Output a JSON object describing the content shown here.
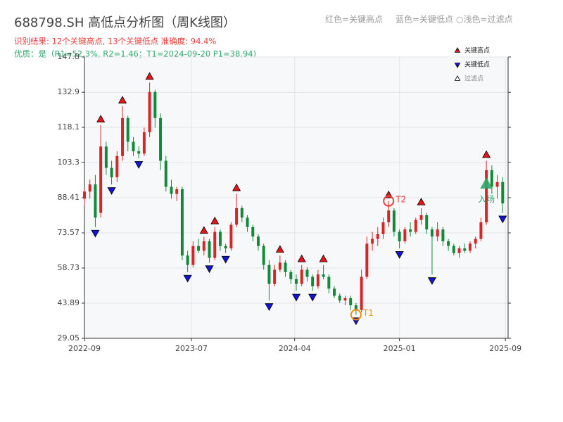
{
  "chart_data": {
    "type": "candlestick",
    "title": "688798.SH 高低点分析图（周K线图）",
    "subtitle": "识别结果: 12个关键高点, 13个关键低点  准确度: 94.4%",
    "subtitle2": "优质：是（R1=52.3%, R2=1.46；T1=2024-09-20 P1=38.94)",
    "top_legend": [
      "红色=关键高点",
      "蓝色=关键低点",
      "○浅色=过滤点"
    ],
    "up_color": "#d62728",
    "down_color": "#138a3a",
    "ohlc": [
      [
        88,
        92,
        85,
        91
      ],
      [
        91,
        96,
        88,
        94
      ],
      [
        94,
        98,
        76,
        80
      ],
      [
        82,
        119,
        80,
        110
      ],
      [
        110,
        112,
        98,
        101
      ],
      [
        101,
        104,
        94,
        97
      ],
      [
        97,
        108,
        95,
        106
      ],
      [
        106,
        127,
        104,
        122
      ],
      [
        122,
        123,
        108,
        112
      ],
      [
        112,
        114,
        106,
        108
      ],
      [
        108,
        110,
        105,
        107
      ],
      [
        107,
        118,
        106,
        116
      ],
      [
        116,
        137,
        114,
        133
      ],
      [
        133,
        134,
        118,
        122
      ],
      [
        122,
        124,
        100,
        104
      ],
      [
        104,
        106,
        91,
        93
      ],
      [
        93,
        96,
        88,
        90
      ],
      [
        90,
        93,
        87,
        92
      ],
      [
        92,
        93,
        62,
        64
      ],
      [
        64,
        66,
        57,
        60
      ],
      [
        60,
        70,
        59,
        68
      ],
      [
        68,
        71,
        65,
        66
      ],
      [
        66,
        72,
        64,
        70
      ],
      [
        70,
        71,
        61,
        63
      ],
      [
        63,
        76,
        62,
        74
      ],
      [
        74,
        75,
        66,
        68
      ],
      [
        68,
        69,
        65,
        67
      ],
      [
        67,
        78,
        66,
        77
      ],
      [
        77,
        90,
        76,
        84
      ],
      [
        84,
        85,
        78,
        80
      ],
      [
        80,
        81,
        74,
        76
      ],
      [
        76,
        77,
        70,
        72
      ],
      [
        72,
        73,
        66,
        68
      ],
      [
        68,
        69,
        58,
        60
      ],
      [
        60,
        62,
        45,
        52
      ],
      [
        52,
        60,
        51,
        58
      ],
      [
        58,
        64,
        57,
        61
      ],
      [
        61,
        62,
        55,
        57
      ],
      [
        57,
        58,
        52,
        54
      ],
      [
        54,
        56,
        49,
        52
      ],
      [
        52,
        60,
        51,
        58
      ],
      [
        58,
        59,
        53,
        55
      ],
      [
        55,
        56,
        49,
        51
      ],
      [
        51,
        58,
        50,
        56
      ],
      [
        56,
        60,
        54,
        55
      ],
      [
        55,
        56,
        48,
        50
      ],
      [
        50,
        51,
        46,
        47
      ],
      [
        47,
        48,
        44,
        45
      ],
      [
        45,
        47,
        43,
        46
      ],
      [
        46,
        47,
        41,
        43
      ],
      [
        43,
        44,
        39,
        41
      ],
      [
        41,
        58,
        40,
        55
      ],
      [
        55,
        72,
        54,
        69
      ],
      [
        69,
        74,
        66,
        71
      ],
      [
        71,
        76,
        68,
        73
      ],
      [
        73,
        80,
        71,
        78
      ],
      [
        78,
        87,
        76,
        83
      ],
      [
        83,
        84,
        72,
        74
      ],
      [
        74,
        75,
        67,
        70
      ],
      [
        70,
        76,
        69,
        75
      ],
      [
        75,
        78,
        72,
        74
      ],
      [
        74,
        80,
        73,
        79
      ],
      [
        79,
        84,
        77,
        81
      ],
      [
        81,
        82,
        73,
        75
      ],
      [
        75,
        76,
        56,
        72
      ],
      [
        72,
        78,
        70,
        75
      ],
      [
        75,
        76,
        68,
        70
      ],
      [
        70,
        71,
        66,
        68
      ],
      [
        68,
        69,
        64,
        65
      ],
      [
        65,
        68,
        63,
        67
      ],
      [
        67,
        69,
        65,
        66
      ],
      [
        66,
        70,
        65,
        69
      ],
      [
        69,
        72,
        67,
        71
      ],
      [
        71,
        80,
        70,
        78
      ],
      [
        78,
        104,
        77,
        100
      ],
      [
        100,
        102,
        90,
        93
      ],
      [
        93,
        98,
        88,
        95
      ],
      [
        95,
        97,
        82,
        86
      ]
    ],
    "series": [
      {
        "name": "关键高点",
        "color": "#e8141c",
        "marker": "up",
        "x": [
          3,
          7,
          12,
          22,
          24,
          28,
          36,
          40,
          44,
          56,
          62,
          74
        ],
        "values": [
          119,
          127,
          137,
          72,
          76,
          90,
          64,
          60,
          60,
          87,
          84,
          104
        ]
      },
      {
        "name": "关键低点",
        "color": "#1414d6",
        "marker": "down",
        "x": [
          2,
          5,
          10,
          19,
          23,
          26,
          34,
          39,
          42,
          50,
          58,
          64,
          77
        ],
        "values": [
          76,
          94,
          105,
          57,
          61,
          65,
          45,
          49,
          49,
          39,
          67,
          56,
          82
        ]
      },
      {
        "name": "过滤点",
        "color": "#ffffff",
        "marker": "up",
        "x": [],
        "values": []
      }
    ],
    "annotations": [
      {
        "text": "T1",
        "x": 50,
        "y": 39,
        "color": "#f0900a"
      },
      {
        "text": "T2",
        "x": 56,
        "y": 87,
        "color": "#e84040"
      },
      {
        "text": "入场",
        "x": 74,
        "y": 94,
        "color": "#2ea86a"
      }
    ],
    "xlim": [
      0,
      78
    ],
    "xticks": [
      {
        "value": 0,
        "label": "2022-09"
      },
      {
        "value": 19.7,
        "label": "2023-07"
      },
      {
        "value": 38.7,
        "label": "2024-04"
      },
      {
        "value": 58,
        "label": "2025-01"
      },
      {
        "value": 77.5,
        "label": "2025-09"
      }
    ],
    "ylim": [
      29.05,
      147.8
    ],
    "yticks": [
      29.05,
      43.89,
      58.73,
      73.57,
      88.41,
      103.3,
      118.1,
      132.9,
      147.8
    ],
    "grid": true
  }
}
